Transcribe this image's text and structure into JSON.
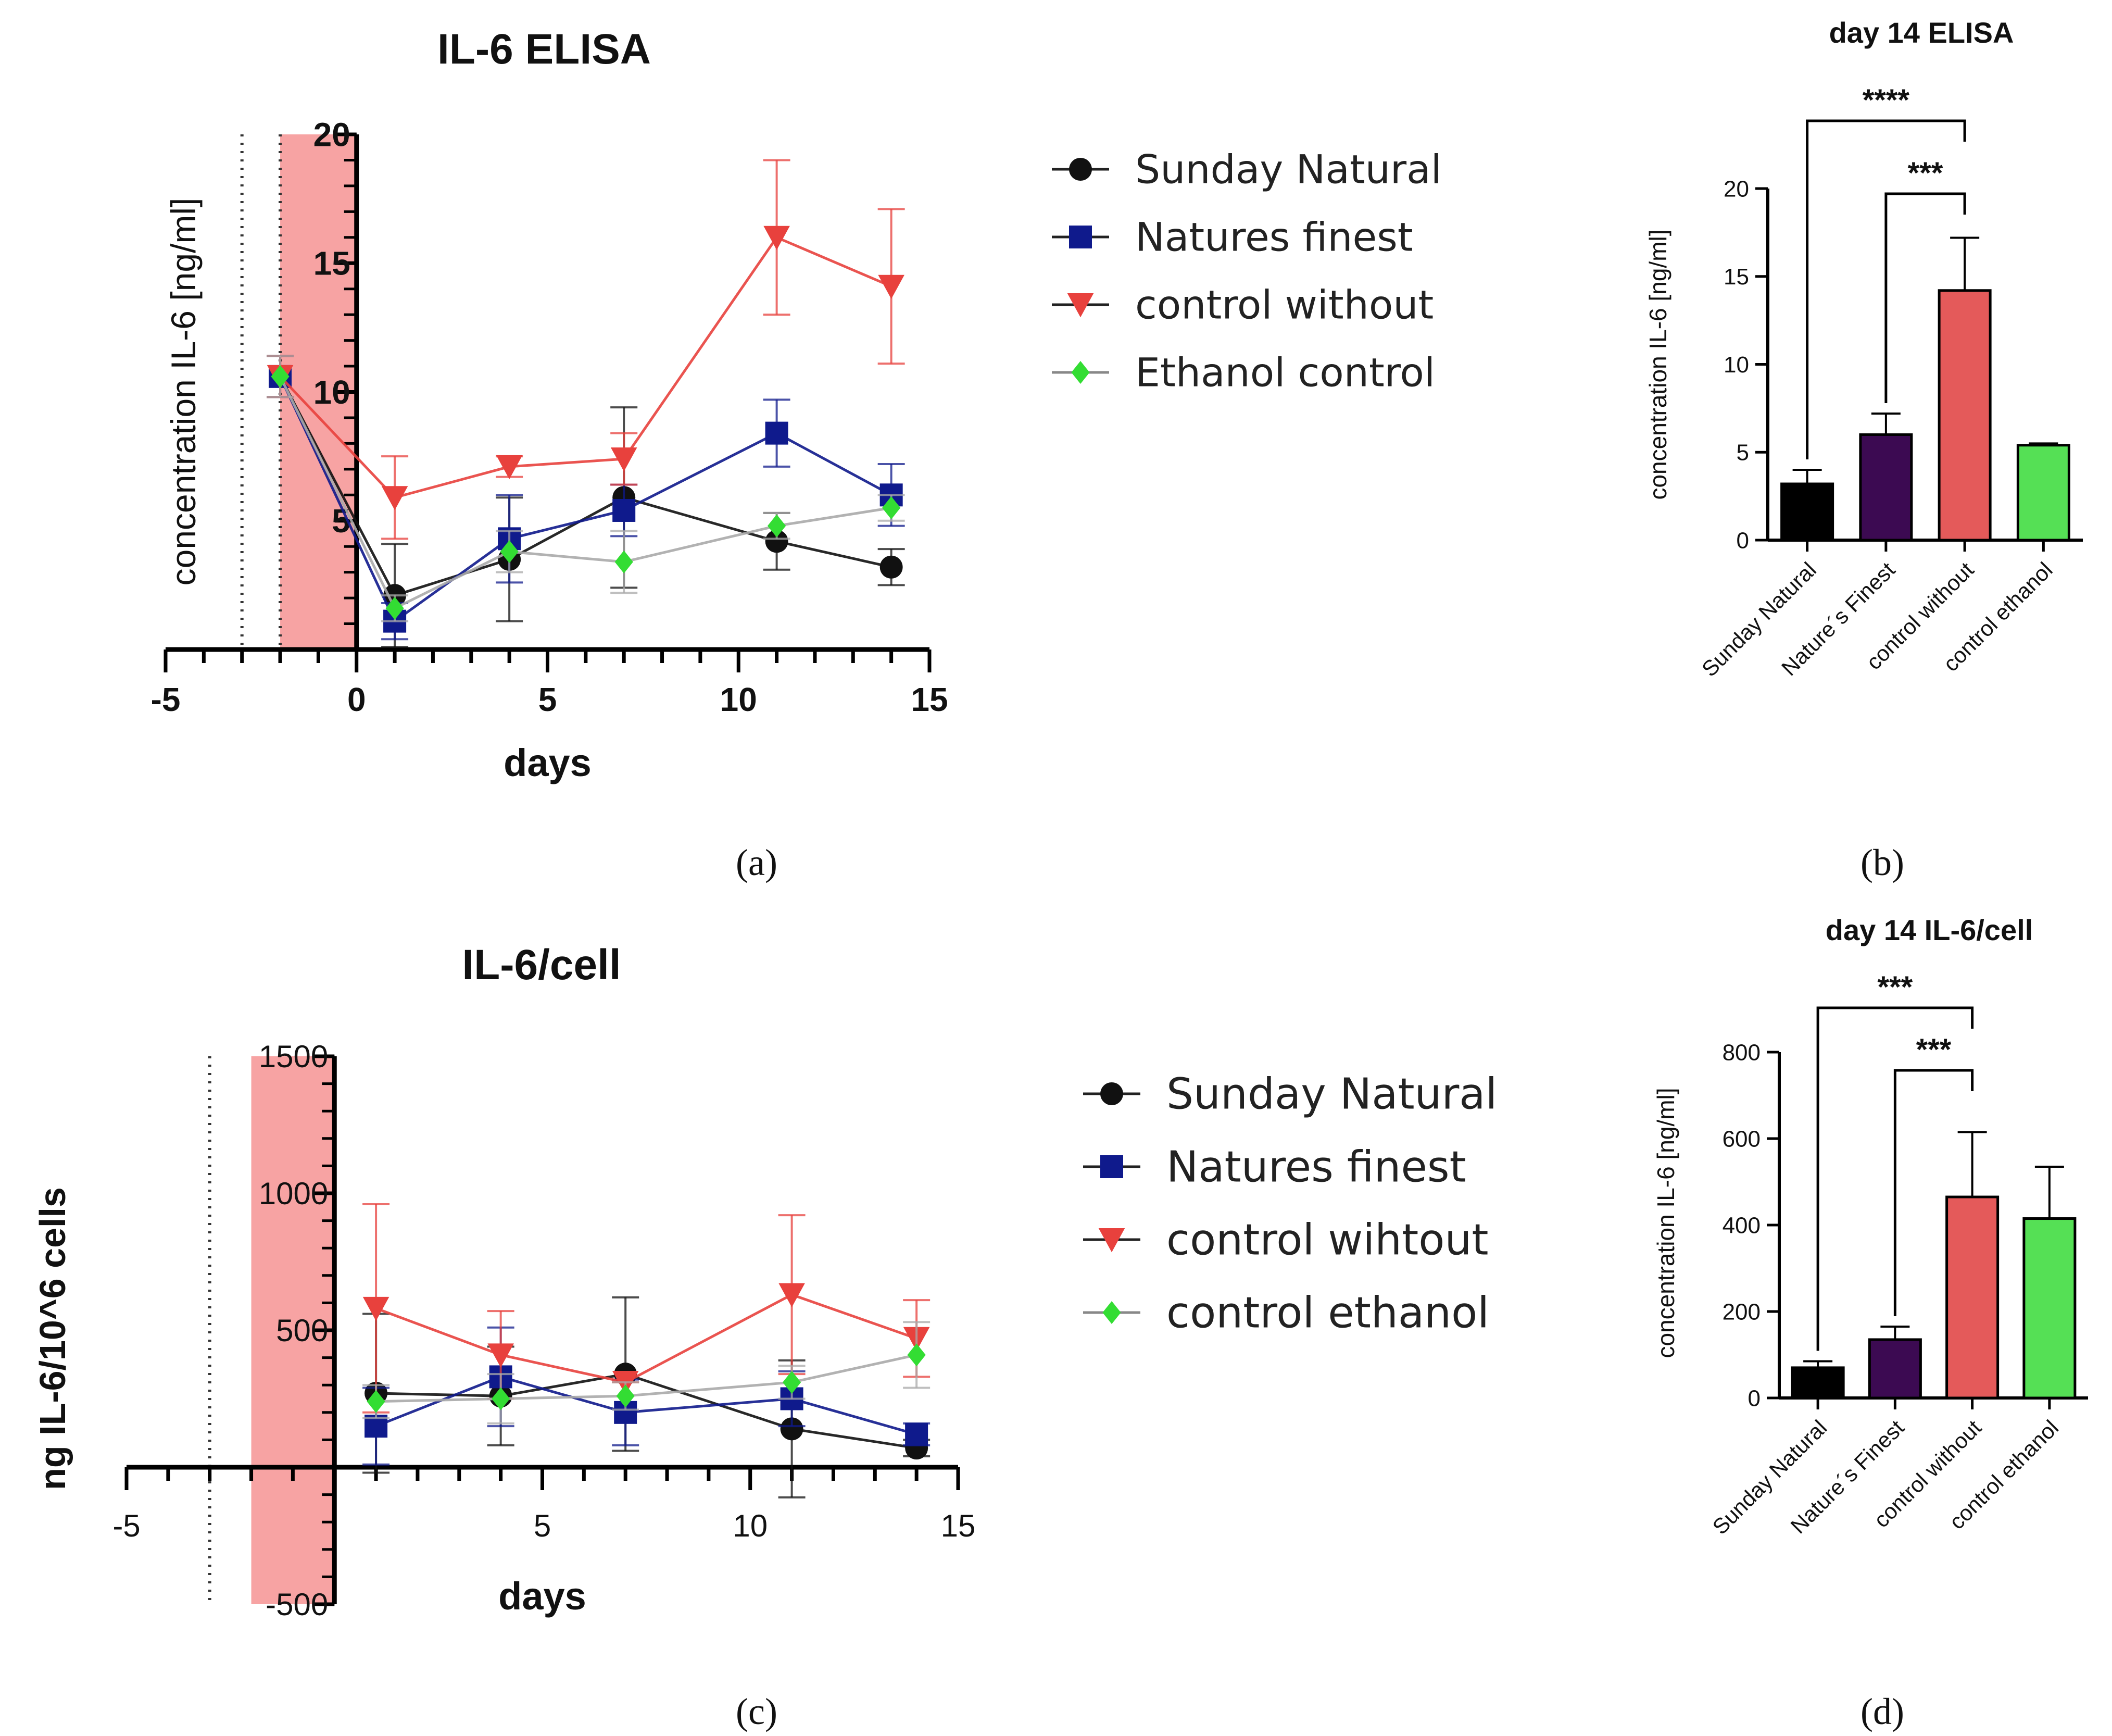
{
  "chart_data": [
    {
      "id": "a",
      "type": "line",
      "title": "IL-6 ELISA",
      "xlabel": "days",
      "ylabel": "concentration IL-6 [ng/ml]",
      "xlim": [
        -5,
        15
      ],
      "ylim": [
        0,
        20
      ],
      "xticks": [
        "-5",
        "0",
        "5",
        "10",
        "15"
      ],
      "yticks": [
        "5",
        "10",
        "15",
        "20"
      ],
      "shaded_region": [
        -2,
        0
      ],
      "dotted_lines": [
        -3,
        -2
      ],
      "legend": [
        "Sunday Natural",
        "Natures finest",
        "control without",
        "Ethanol control"
      ],
      "series": [
        {
          "name": "Sunday Natural",
          "color": "#111111",
          "marker": "circle",
          "x": [
            -2,
            1,
            4,
            7,
            11,
            14
          ],
          "y": [
            10.6,
            2.1,
            3.5,
            5.9,
            4.2,
            3.2
          ],
          "err": [
            0.8,
            2.0,
            2.4,
            3.5,
            1.1,
            0.7
          ]
        },
        {
          "name": "Natures finest",
          "color": "#0f1a8c",
          "marker": "square",
          "x": [
            -2,
            1,
            4,
            7,
            11,
            14
          ],
          "y": [
            10.6,
            1.1,
            4.3,
            5.4,
            8.4,
            6.0
          ],
          "err": [
            0.8,
            0.7,
            1.7,
            1.0,
            1.3,
            1.2
          ]
        },
        {
          "name": "control without",
          "color": "#e8413d",
          "marker": "triangle-down",
          "x": [
            -2,
            1,
            4,
            7,
            11,
            14
          ],
          "y": [
            10.6,
            5.9,
            7.1,
            7.4,
            16.0,
            14.1
          ],
          "err": [
            0.8,
            1.6,
            0.4,
            1.0,
            3.0,
            3.0
          ]
        },
        {
          "name": "Ethanol control",
          "color": "#aaaaaa",
          "marker": "diamond",
          "markerColor": "#33dd33",
          "x": [
            -2,
            1,
            4,
            7,
            11,
            14
          ],
          "y": [
            10.6,
            1.6,
            3.8,
            3.4,
            4.8,
            5.5
          ],
          "err": [
            0.8,
            0.5,
            0.8,
            1.2,
            0.5,
            0.5
          ]
        }
      ]
    },
    {
      "id": "b",
      "type": "bar",
      "title": "day 14 ELISA",
      "ylabel": "concentration IL-6 [ng/ml]",
      "ylim": [
        0,
        20
      ],
      "yticks": [
        "0",
        "5",
        "10",
        "15",
        "20"
      ],
      "categories": [
        "Sunday Natural",
        "Nature´s Finest",
        "control without",
        "control ethanol"
      ],
      "values": [
        3.2,
        6.0,
        14.2,
        5.4
      ],
      "errors": [
        0.8,
        1.2,
        3.0,
        0.1
      ],
      "colors": [
        "#000000",
        "#3c0a52",
        "#e45a5a",
        "#55e055"
      ],
      "significance": [
        {
          "label": "****",
          "from": 0,
          "to": 2
        },
        {
          "label": "***",
          "from": 1,
          "to": 2
        }
      ]
    },
    {
      "id": "c",
      "type": "line",
      "title": "IL-6/cell",
      "xlabel": "days",
      "ylabel": "ng IL-6/10^6 cells",
      "xlim": [
        -5,
        15
      ],
      "ylim": [
        -500,
        1500
      ],
      "xticks": [
        "-5",
        "5",
        "10",
        "15"
      ],
      "yticks": [
        "-500",
        "500",
        "1000",
        "1500"
      ],
      "shaded_region": [
        -2,
        0
      ],
      "dotted_lines": [
        -3,
        0
      ],
      "legend": [
        "Sunday Natural",
        "Natures finest",
        "control wihtout",
        "control ethanol"
      ],
      "series": [
        {
          "name": "Sunday Natural",
          "color": "#111111",
          "marker": "circle",
          "x": [
            1,
            4,
            7,
            11,
            14
          ],
          "y": [
            270,
            260,
            340,
            140,
            70
          ],
          "err": [
            290,
            180,
            280,
            250,
            30
          ]
        },
        {
          "name": "Natures finest",
          "color": "#0f1a8c",
          "marker": "square",
          "x": [
            1,
            4,
            7,
            11,
            14
          ],
          "y": [
            150,
            330,
            200,
            250,
            120
          ],
          "err": [
            140,
            180,
            120,
            100,
            40
          ]
        },
        {
          "name": "control wihtout",
          "color": "#e8413d",
          "marker": "triangle-down",
          "x": [
            1,
            4,
            7,
            11,
            14
          ],
          "y": [
            580,
            410,
            310,
            630,
            470
          ],
          "err": [
            380,
            160,
            0,
            290,
            140
          ]
        },
        {
          "name": "control ethanol",
          "color": "#aaaaaa",
          "marker": "diamond",
          "markerColor": "#33dd33",
          "x": [
            1,
            4,
            7,
            11,
            14
          ],
          "y": [
            240,
            250,
            260,
            310,
            410
          ],
          "err": [
            60,
            90,
            50,
            60,
            120
          ]
        }
      ]
    },
    {
      "id": "d",
      "type": "bar",
      "title": "day 14 IL-6/cell",
      "ylabel": "concentration IL-6 [ng/ml]",
      "ylim": [
        0,
        800
      ],
      "yticks": [
        "0",
        "200",
        "400",
        "600",
        "800"
      ],
      "categories": [
        "Sunday Natural",
        "Nature´s Finest",
        "control without",
        "control ethanol"
      ],
      "values": [
        70,
        135,
        465,
        415
      ],
      "errors": [
        15,
        30,
        150,
        120
      ],
      "colors": [
        "#000000",
        "#3c0a52",
        "#e45a5a",
        "#55e055"
      ],
      "significance": [
        {
          "label": "***",
          "from": 0,
          "to": 2
        },
        {
          "label": "***",
          "from": 1,
          "to": 2
        }
      ]
    }
  ],
  "panels": {
    "a": "(a)",
    "b": "(b)",
    "c": "(c)",
    "d": "(d)"
  }
}
